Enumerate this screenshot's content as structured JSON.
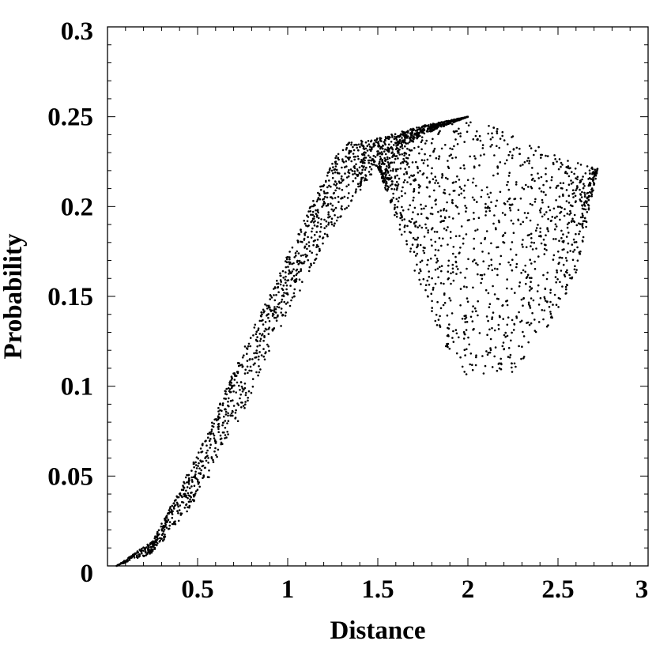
{
  "chart_data": {
    "type": "scatter",
    "title": "",
    "xlabel": "Distance",
    "ylabel": "Probability",
    "xlim": [
      0,
      3
    ],
    "ylim": [
      0,
      0.3
    ],
    "grid": false,
    "x_ticks": [
      "0.5",
      "1",
      "1.5",
      "2",
      "2.5",
      "3"
    ],
    "y_ticks": [
      "0",
      "0.05",
      "0.1",
      "0.15",
      "0.2",
      "0.25",
      "0.3"
    ],
    "point_color": "#000000",
    "series": [
      {
        "region": "rising band",
        "lower_boundary": [
          [
            0.05,
            0.0
          ],
          [
            0.25,
            0.007
          ],
          [
            0.5,
            0.037
          ],
          [
            0.75,
            0.085
          ],
          [
            1.0,
            0.14
          ],
          [
            1.25,
            0.188
          ],
          [
            1.5,
            0.222
          ],
          [
            1.75,
            0.24
          ],
          [
            2.0,
            0.25
          ]
        ],
        "upper_boundary": [
          [
            0.05,
            0.0
          ],
          [
            0.25,
            0.014
          ],
          [
            0.5,
            0.062
          ],
          [
            0.75,
            0.12
          ],
          [
            1.0,
            0.173
          ],
          [
            1.15,
            0.205
          ],
          [
            1.3,
            0.235
          ],
          [
            1.5,
            0.238
          ],
          [
            1.75,
            0.245
          ],
          [
            2.0,
            0.25
          ]
        ]
      },
      {
        "region": "fan region",
        "upper_boundary": [
          [
            1.5,
            0.222
          ],
          [
            1.75,
            0.242
          ],
          [
            2.0,
            0.25
          ],
          [
            2.25,
            0.24
          ],
          [
            2.5,
            0.228
          ],
          [
            2.72,
            0.221
          ]
        ],
        "lower_boundary": [
          [
            1.5,
            0.222
          ],
          [
            1.7,
            0.165
          ],
          [
            1.9,
            0.116
          ],
          [
            2.05,
            0.1
          ],
          [
            2.25,
            0.108
          ],
          [
            2.45,
            0.132
          ],
          [
            2.6,
            0.16
          ],
          [
            2.72,
            0.221
          ]
        ]
      }
    ]
  }
}
